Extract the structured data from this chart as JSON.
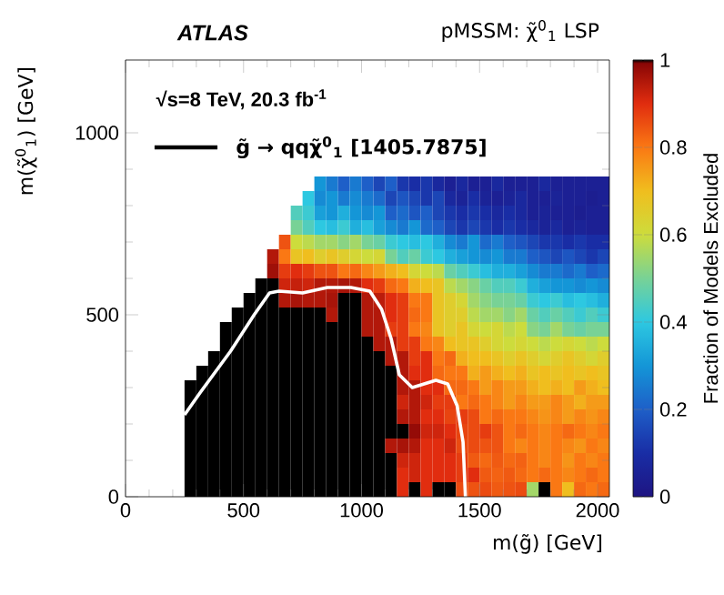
{
  "chart_data": {
    "type": "heatmap",
    "title": "ATLAS",
    "subtitle": "pMSSM: χ̃$^{0}$$_{1}$ LSP",
    "xlabel": "m(g̃) [GeV]",
    "ylabel": "m(χ̃$^{0}$$_{1}$) [GeV]",
    "clabel": "Fraction of  Models Excluded",
    "annotations": [
      "√s=8 TeV, 20.3 fb$^{-1}$"
    ],
    "legend": "top left",
    "xlim": [
      0,
      2050
    ],
    "ylim": [
      0,
      1200
    ],
    "xticks": [
      0,
      500,
      1000,
      1500,
      2000
    ],
    "yticks": [
      0,
      500,
      1000
    ],
    "clim": [
      0,
      1
    ],
    "cticks": [
      0,
      0.2,
      0.4,
      0.6,
      0.8,
      1
    ],
    "x": [
      275,
      325,
      375,
      425,
      475,
      525,
      575,
      625,
      675,
      725,
      775,
      825,
      875,
      925,
      975,
      1025,
      1075,
      1125,
      1175,
      1225,
      1275,
      1325,
      1375,
      1425,
      1475,
      1525,
      1575,
      1625,
      1675,
      1725,
      1775,
      1825,
      1875,
      1925,
      1975,
      2025
    ],
    "y": [
      860,
      820,
      780,
      740,
      700,
      660,
      620,
      580,
      540,
      500,
      460,
      420,
      380,
      340,
      300,
      260,
      220,
      180,
      140,
      100,
      60,
      20
    ],
    "cells": [
      [
        null,
        null,
        null,
        null,
        null,
        null,
        null,
        null,
        null,
        null,
        null,
        0.3,
        0.25,
        0.2,
        0.25,
        0.2,
        0.15,
        0.2,
        0.12,
        0.1,
        0.12,
        0.08,
        0.05,
        0.08,
        0.05,
        0.05,
        0.08,
        0.05,
        0.05,
        0.05,
        0.08,
        0.05,
        0.05,
        0.05,
        0.05,
        0.05
      ],
      [
        null,
        null,
        null,
        null,
        null,
        null,
        null,
        null,
        null,
        null,
        0.4,
        0.28,
        0.3,
        0.25,
        0.28,
        0.25,
        0.22,
        0.15,
        0.18,
        0.15,
        0.12,
        0.15,
        0.08,
        0.06,
        0.1,
        0.06,
        0.05,
        0.06,
        0.08,
        0.05,
        0.05,
        0.06,
        0.05,
        0.05,
        0.04,
        0.05
      ],
      [
        null,
        null,
        null,
        null,
        null,
        null,
        null,
        null,
        null,
        0.45,
        0.42,
        0.32,
        0.3,
        0.35,
        0.3,
        0.28,
        0.3,
        0.2,
        0.22,
        0.18,
        0.2,
        0.15,
        0.12,
        0.1,
        0.12,
        0.1,
        0.08,
        0.1,
        0.08,
        0.05,
        0.06,
        0.05,
        0.05,
        0.04,
        0.05,
        0.05
      ],
      [
        null,
        null,
        null,
        null,
        null,
        null,
        null,
        null,
        null,
        0.5,
        0.45,
        0.4,
        0.38,
        0.42,
        0.35,
        0.38,
        0.32,
        0.28,
        0.25,
        0.3,
        0.22,
        0.2,
        0.15,
        0.12,
        0.15,
        0.12,
        0.1,
        0.12,
        0.1,
        0.08,
        0.06,
        0.08,
        0.05,
        0.06,
        0.05,
        0.05
      ],
      [
        null,
        null,
        null,
        null,
        null,
        null,
        null,
        null,
        0.85,
        0.6,
        0.58,
        0.55,
        0.55,
        0.52,
        0.55,
        0.5,
        0.48,
        0.42,
        0.4,
        0.38,
        0.4,
        0.35,
        0.28,
        0.25,
        0.3,
        0.22,
        0.25,
        0.2,
        0.18,
        0.15,
        0.12,
        0.12,
        0.1,
        0.12,
        0.1,
        0.1
      ],
      [
        null,
        null,
        null,
        null,
        null,
        null,
        null,
        0.95,
        0.8,
        0.68,
        0.7,
        0.65,
        0.68,
        0.65,
        0.62,
        0.6,
        0.62,
        0.5,
        0.45,
        0.48,
        0.42,
        0.4,
        0.35,
        0.32,
        0.3,
        0.28,
        0.3,
        0.25,
        0.25,
        0.2,
        0.18,
        0.15,
        0.18,
        0.15,
        0.12,
        0.15
      ],
      [
        null,
        null,
        null,
        null,
        null,
        null,
        null,
        0.97,
        0.88,
        0.9,
        0.88,
        0.85,
        0.85,
        0.8,
        0.82,
        0.78,
        0.75,
        0.72,
        0.7,
        0.62,
        0.6,
        0.58,
        0.48,
        0.45,
        0.42,
        0.38,
        0.35,
        0.35,
        0.32,
        0.28,
        0.25,
        0.25,
        0.22,
        0.25,
        0.2,
        0.22
      ],
      [
        null,
        null,
        null,
        null,
        null,
        null,
        1,
        1,
        0.92,
        0.93,
        0.92,
        0.95,
        0.95,
        0.96,
        0.95,
        0.9,
        0.88,
        0.82,
        0.8,
        0.72,
        0.7,
        0.68,
        0.58,
        0.55,
        0.52,
        0.48,
        0.45,
        0.45,
        0.42,
        0.35,
        0.32,
        0.3,
        0.3,
        0.28,
        0.3,
        0.28
      ],
      [
        null,
        null,
        null,
        null,
        null,
        1,
        1,
        1,
        0.95,
        0.96,
        0.95,
        0.95,
        0.96,
        1,
        1,
        0.95,
        0.94,
        0.9,
        0.88,
        0.8,
        0.8,
        0.68,
        0.65,
        0.62,
        0.55,
        0.52,
        0.5,
        0.5,
        0.48,
        0.42,
        0.4,
        0.42,
        0.38,
        0.4,
        0.38,
        0.35
      ],
      [
        null,
        null,
        null,
        null,
        1,
        1,
        1,
        1,
        1,
        1,
        1,
        1,
        0.95,
        1,
        1,
        0.95,
        0.95,
        0.9,
        0.88,
        0.82,
        0.8,
        0.68,
        0.65,
        0.65,
        0.58,
        0.55,
        0.55,
        0.52,
        0.55,
        0.48,
        0.45,
        0.48,
        0.45,
        0.42,
        0.45,
        0.42
      ],
      [
        null,
        null,
        null,
        1,
        1,
        1,
        1,
        1,
        1,
        1,
        1,
        1,
        1,
        1,
        1,
        0.95,
        0.95,
        0.88,
        0.88,
        0.8,
        0.78,
        0.68,
        0.65,
        0.68,
        0.62,
        0.6,
        0.62,
        0.58,
        0.6,
        0.52,
        0.5,
        0.55,
        0.5,
        0.48,
        0.5,
        0.5
      ],
      [
        null,
        null,
        null,
        1,
        1,
        1,
        1,
        1,
        1,
        1,
        1,
        1,
        1,
        1,
        1,
        1,
        0.95,
        0.95,
        0.88,
        0.88,
        0.8,
        0.78,
        0.7,
        0.68,
        0.68,
        0.65,
        0.62,
        0.6,
        0.62,
        0.6,
        0.58,
        0.6,
        0.62,
        0.6,
        0.58,
        0.6
      ],
      [
        null,
        null,
        1,
        1,
        1,
        1,
        1,
        1,
        1,
        1,
        1,
        1,
        1,
        1,
        1,
        1,
        1,
        0.95,
        0.95,
        0.88,
        0.9,
        0.8,
        0.82,
        0.72,
        0.7,
        0.7,
        0.68,
        0.65,
        0.68,
        0.65,
        0.62,
        0.65,
        0.68,
        0.65,
        0.62,
        0.65
      ],
      [
        null,
        1,
        1,
        1,
        1,
        1,
        1,
        1,
        1,
        1,
        1,
        1,
        1,
        1,
        1,
        1,
        1,
        1,
        0.95,
        0.9,
        0.9,
        0.82,
        0.8,
        0.8,
        0.72,
        0.75,
        0.72,
        0.7,
        0.72,
        0.68,
        0.7,
        0.68,
        0.7,
        0.68,
        0.7,
        0.68
      ],
      [
        1,
        1,
        1,
        1,
        1,
        1,
        1,
        1,
        1,
        1,
        1,
        1,
        1,
        1,
        1,
        1,
        1,
        1,
        0.95,
        0.95,
        0.9,
        0.9,
        0.82,
        0.82,
        0.8,
        0.75,
        0.78,
        0.75,
        0.75,
        0.72,
        0.7,
        0.72,
        0.7,
        0.75,
        0.72,
        0.7
      ],
      [
        1,
        1,
        1,
        1,
        1,
        1,
        1,
        1,
        1,
        1,
        1,
        1,
        1,
        1,
        1,
        1,
        1,
        1,
        0.92,
        0.95,
        0.92,
        0.88,
        0.88,
        0.8,
        0.82,
        0.8,
        0.78,
        0.75,
        0.78,
        0.75,
        0.75,
        0.78,
        0.75,
        0.72,
        0.75,
        0.75
      ],
      [
        1,
        1,
        1,
        1,
        1,
        1,
        1,
        1,
        1,
        1,
        1,
        1,
        1,
        1,
        1,
        1,
        1,
        1,
        0.95,
        0.95,
        0.9,
        0.9,
        0.87,
        0.88,
        0.86,
        0.8,
        0.82,
        0.8,
        0.8,
        0.78,
        0.76,
        0.78,
        0.75,
        0.78,
        0.76,
        0.78
      ],
      [
        1,
        1,
        1,
        1,
        1,
        1,
        1,
        1,
        1,
        1,
        1,
        1,
        1,
        1,
        1,
        1,
        1,
        1,
        1,
        0.98,
        0.92,
        0.92,
        0.9,
        0.87,
        0.86,
        0.88,
        0.85,
        0.8,
        0.82,
        0.8,
        0.78,
        0.8,
        0.82,
        0.8,
        0.78,
        0.8
      ],
      [
        1,
        1,
        1,
        1,
        1,
        1,
        1,
        1,
        1,
        1,
        1,
        1,
        1,
        1,
        1,
        1,
        1,
        0.95,
        0.96,
        0.95,
        0.9,
        0.9,
        0.92,
        0.86,
        0.86,
        0.85,
        0.85,
        0.8,
        0.78,
        0.8,
        0.78,
        0.8,
        0.78,
        0.76,
        0.8,
        0.78
      ],
      [
        1,
        1,
        1,
        1,
        1,
        1,
        1,
        1,
        1,
        1,
        1,
        1,
        1,
        1,
        1,
        1,
        1,
        1,
        0.92,
        0.92,
        0.9,
        0.9,
        0.9,
        0.88,
        0.84,
        0.82,
        0.84,
        0.82,
        0.83,
        0.8,
        0.78,
        0.8,
        0.76,
        0.8,
        0.78,
        0.8
      ],
      [
        1,
        1,
        1,
        1,
        1,
        1,
        1,
        1,
        1,
        1,
        1,
        1,
        1,
        1,
        1,
        1,
        1,
        1,
        0.9,
        0.92,
        0.9,
        0.9,
        0.9,
        0.88,
        0.9,
        0.84,
        0.83,
        0.84,
        0.82,
        0.8,
        0.82,
        0.8,
        0.78,
        0.8,
        0.82,
        0.8
      ],
      [
        1,
        1,
        1,
        1,
        1,
        1,
        1,
        1,
        1,
        1,
        1,
        1,
        1,
        1,
        1,
        1,
        1,
        1,
        0.9,
        1,
        0.9,
        1,
        1,
        0.86,
        0.85,
        0.86,
        0.84,
        0.85,
        0.86,
        0.55,
        1,
        0.8,
        0.7,
        0.82,
        0.8,
        0.82
      ]
    ],
    "series": [
      {
        "name": "g̃ → qqχ̃$^{0}$$_{1}$ [1405.7875]",
        "type": "line",
        "color": "#ffffff",
        "x": [
          250,
          315,
          445,
          545,
          610,
          650,
          750,
          855,
          955,
          1035,
          1085,
          1125,
          1160,
          1215,
          1315,
          1365,
          1405,
          1430,
          1440
        ],
        "values": [
          225,
          285,
          400,
          500,
          560,
          565,
          560,
          575,
          575,
          565,
          515,
          435,
          335,
          300,
          320,
          310,
          250,
          150,
          0
        ]
      }
    ]
  }
}
